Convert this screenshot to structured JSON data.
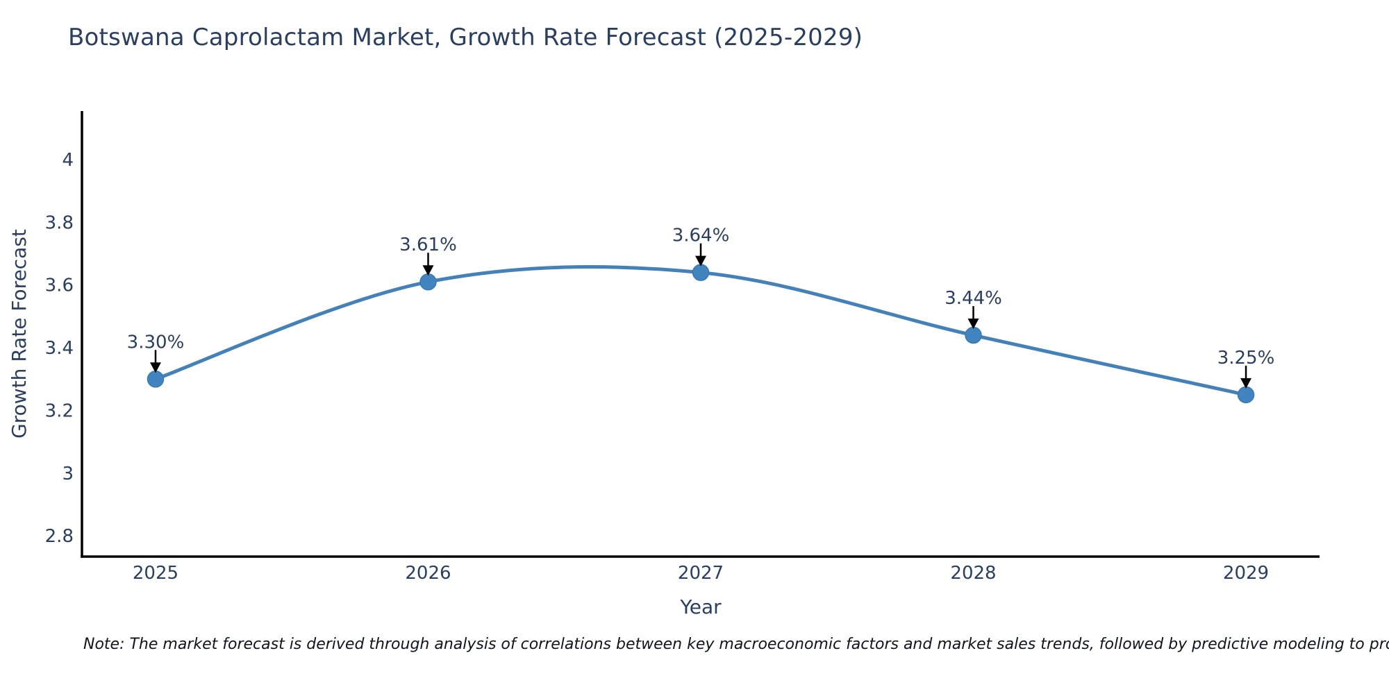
{
  "chart_data": {
    "type": "line",
    "title": "Botswana Caprolactam Market, Growth Rate Forecast (2025-2029)",
    "xlabel": "Year",
    "ylabel": "Growth Rate Forecast",
    "categories": [
      "2025",
      "2026",
      "2027",
      "2028",
      "2029"
    ],
    "x": [
      2025,
      2026,
      2027,
      2028,
      2029
    ],
    "values": [
      3.3,
      3.61,
      3.64,
      3.44,
      3.25
    ],
    "point_labels": [
      "3.30%",
      "3.61%",
      "3.64%",
      "3.44%",
      "3.25%"
    ],
    "ytick_labels": [
      "2.8",
      "3",
      "3.2",
      "3.4",
      "3.6",
      "3.8",
      "4"
    ],
    "yticks": [
      2.8,
      3.0,
      3.2,
      3.4,
      3.6,
      3.8,
      4.0
    ],
    "ylim": [
      2.734,
      4.155
    ],
    "xlim": [
      2024.73,
      2029.27
    ],
    "line_shape": "spline",
    "grid": false,
    "legend": "none",
    "colors": {
      "line": "#4381b8",
      "marker": "#4184bf",
      "marker_edge": "#3a78ad",
      "axis": "#000000",
      "text": "#2a3f5f",
      "arrow": "#000000"
    },
    "note": "Note: The market forecast is derived through analysis of correlations between key macroeconomic factors and market sales trends, followed by predictive modeling to project future sales"
  }
}
